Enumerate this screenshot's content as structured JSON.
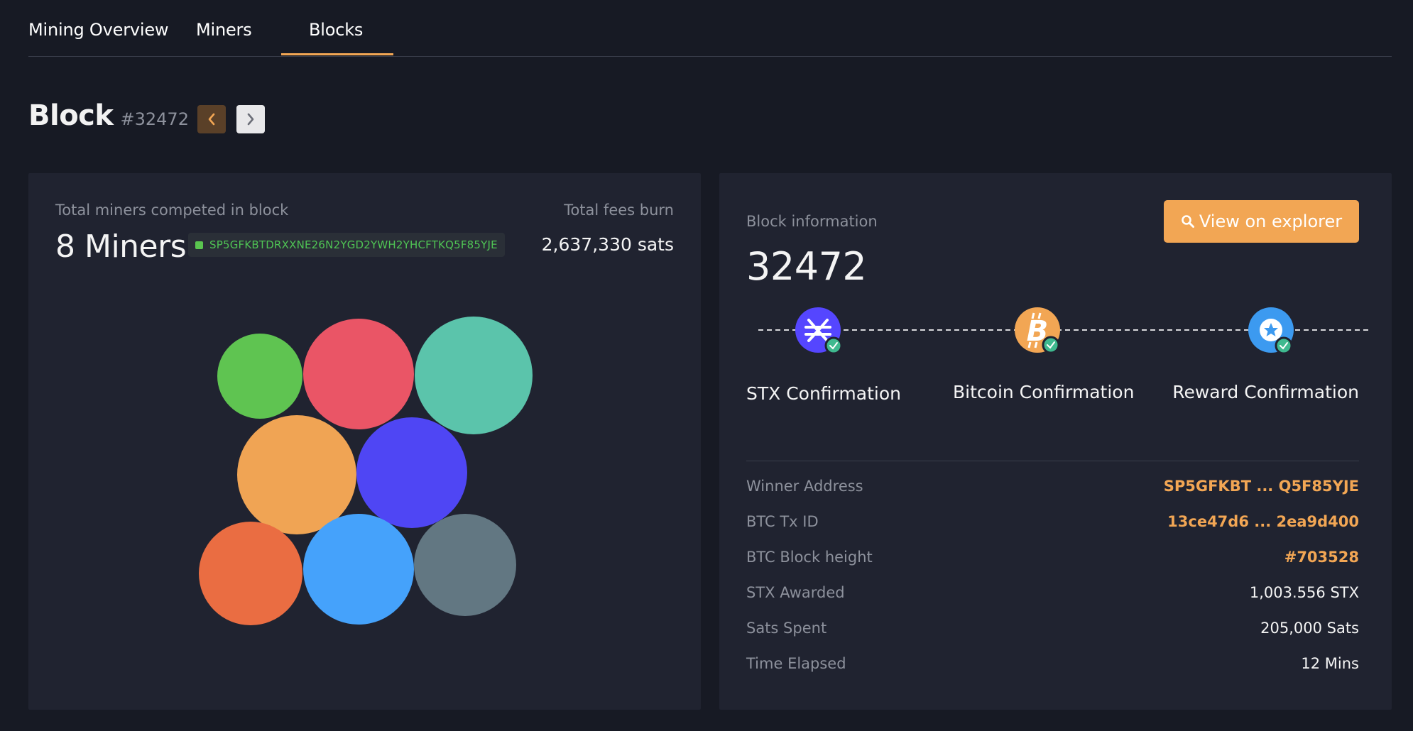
{
  "tabs": [
    "Mining Overview",
    "Miners",
    "Blocks"
  ],
  "active_tab": "Blocks",
  "header": {
    "title": "Block",
    "number": "#32472"
  },
  "miners_panel": {
    "label": "Total miners competed in block",
    "count": "8 Miners",
    "address": "SP5GFKBTDRXXNE26N2YGD2YWH2YHCFTKQ5F85YJE",
    "fees_label": "Total fees burn",
    "fees_value": "2,637,330 sats",
    "bubble_colors": [
      "#5fc451",
      "#ea5566",
      "#5bc4ab",
      "#f0a454",
      "#4f46f4",
      "#ea6d42",
      "#45a2fb",
      "#627782"
    ]
  },
  "block_info": {
    "label": "Block information",
    "number": "32472",
    "explorer_button": "View on explorer",
    "confirmations": [
      {
        "label": "STX Confirmation",
        "icon": "stacks-icon",
        "color": "#5546ff"
      },
      {
        "label": "Bitcoin Confirmation",
        "icon": "bitcoin-icon",
        "color": "#f2a654"
      },
      {
        "label": "Reward Confirmation",
        "icon": "reward-star-icon",
        "color": "#3c9af0"
      }
    ],
    "rows": [
      {
        "key": "Winner Address",
        "value": "SP5GFKBT ... Q5F85YJE",
        "accent": true
      },
      {
        "key": "BTC Tx ID",
        "value": "13ce47d6 ... 2ea9d400",
        "accent": true
      },
      {
        "key": "BTC Block height",
        "value": "#703528",
        "accent": true
      },
      {
        "key": "STX Awarded",
        "value": "1,003.556 STX",
        "accent": false
      },
      {
        "key": "Sats Spent",
        "value": "205,000 Sats",
        "accent": false
      },
      {
        "key": "Time Elapsed",
        "value": "12 Mins",
        "accent": false
      }
    ]
  },
  "colors": {
    "accent": "#f2a654",
    "background": "#171a24",
    "panel": "#202330",
    "check": "#3fb98f"
  }
}
